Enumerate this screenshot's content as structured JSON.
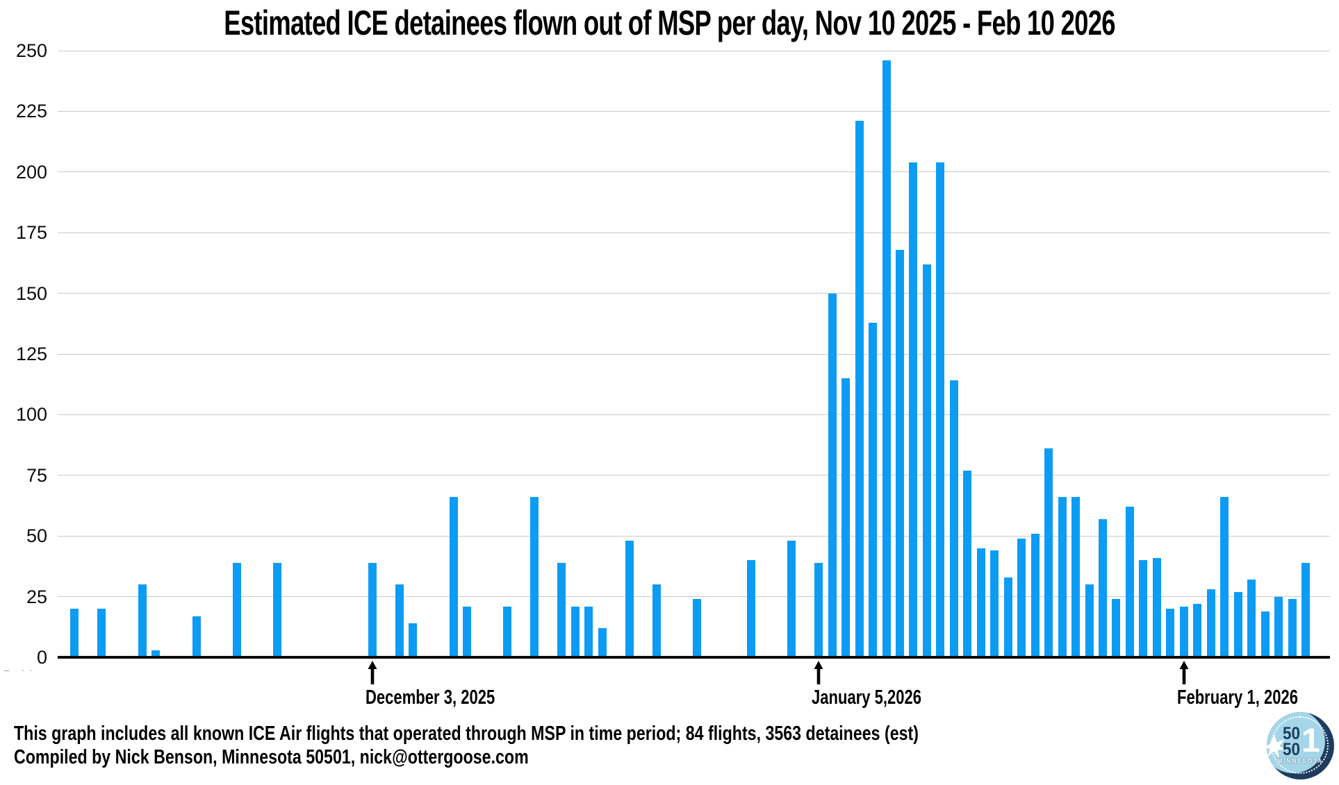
{
  "title": "Estimated ICE detainees flown out of MSP per day, Nov 10 2025 - Feb 10 2026",
  "footer": {
    "line1": "This graph includes all known ICE Air flights that operated through MSP in time period; 84 flights, 3563 detainees (est)",
    "line2": "Compiled by Nick Benson, Minnesota 50501, nick@ottergoose.com"
  },
  "axis_artifact": "– ··",
  "colors": {
    "bar": "#0d9cf4",
    "gridline": "#c9c9c9",
    "axis": "#0a0a0a",
    "text": "#000000",
    "logo_navy": "#1d3c5f",
    "logo_light_blue": "#a5d5e8"
  },
  "logo": {
    "top_number": "50",
    "bottom_number": "50",
    "big_one": "1",
    "state": "MINNESOTA"
  },
  "annotations": [
    {
      "label": "December 3, 2025",
      "day": 23
    },
    {
      "label": "January 5,2026",
      "day": 56
    },
    {
      "label": "February 1, 2026",
      "day": 83
    }
  ],
  "chart_data": {
    "type": "bar",
    "title": "Estimated ICE detainees flown out of MSP per day, Nov 10 2025 - Feb 10 2026",
    "xlabel": "",
    "ylabel": "",
    "x_range": {
      "start": "Nov 10 2025",
      "end": "Feb 10 2026",
      "total_days": 93
    },
    "ylim": [
      0,
      250
    ],
    "y_ticks": [
      0,
      25,
      50,
      75,
      100,
      125,
      150,
      175,
      200,
      225,
      250
    ],
    "grid": true,
    "legend": false,
    "total_detainees_est": 3563,
    "total_flights": 84,
    "bars": [
      {
        "day": 1,
        "date": "Nov 11",
        "value": 20
      },
      {
        "day": 3,
        "date": "Nov 13",
        "value": 20
      },
      {
        "day": 6,
        "date": "Nov 16",
        "value": 30
      },
      {
        "day": 7,
        "date": "Nov 17",
        "value": 3
      },
      {
        "day": 10,
        "date": "Nov 20",
        "value": 17
      },
      {
        "day": 13,
        "date": "Nov 23",
        "value": 39
      },
      {
        "day": 16,
        "date": "Nov 26",
        "value": 39
      },
      {
        "day": 23,
        "date": "Dec 3",
        "value": 39
      },
      {
        "day": 25,
        "date": "Dec 5",
        "value": 30
      },
      {
        "day": 26,
        "date": "Dec 6",
        "value": 14
      },
      {
        "day": 29,
        "date": "Dec 9",
        "value": 66
      },
      {
        "day": 30,
        "date": "Dec 10",
        "value": 21
      },
      {
        "day": 33,
        "date": "Dec 13",
        "value": 21
      },
      {
        "day": 35,
        "date": "Dec 15",
        "value": 66
      },
      {
        "day": 37,
        "date": "Dec 17",
        "value": 39
      },
      {
        "day": 38,
        "date": "Dec 18",
        "value": 21
      },
      {
        "day": 39,
        "date": "Dec 19",
        "value": 21
      },
      {
        "day": 40,
        "date": "Dec 20",
        "value": 12
      },
      {
        "day": 42,
        "date": "Dec 22",
        "value": 48
      },
      {
        "day": 44,
        "date": "Dec 24",
        "value": 30
      },
      {
        "day": 47,
        "date": "Dec 27",
        "value": 24
      },
      {
        "day": 51,
        "date": "Dec 31",
        "value": 40
      },
      {
        "day": 54,
        "date": "Jan 3",
        "value": 48
      },
      {
        "day": 56,
        "date": "Jan 5",
        "value": 39
      },
      {
        "day": 57,
        "date": "Jan 6",
        "value": 150
      },
      {
        "day": 58,
        "date": "Jan 7",
        "value": 115
      },
      {
        "day": 59,
        "date": "Jan 8",
        "value": 221
      },
      {
        "day": 60,
        "date": "Jan 9",
        "value": 138
      },
      {
        "day": 61,
        "date": "Jan 10",
        "value": 246
      },
      {
        "day": 62,
        "date": "Jan 11",
        "value": 168
      },
      {
        "day": 63,
        "date": "Jan 12",
        "value": 204
      },
      {
        "day": 64,
        "date": "Jan 13",
        "value": 162
      },
      {
        "day": 65,
        "date": "Jan 14",
        "value": 204
      },
      {
        "day": 66,
        "date": "Jan 15",
        "value": 114
      },
      {
        "day": 67,
        "date": "Jan 16",
        "value": 77
      },
      {
        "day": 68,
        "date": "Jan 17",
        "value": 45
      },
      {
        "day": 69,
        "date": "Jan 18",
        "value": 44
      },
      {
        "day": 70,
        "date": "Jan 19",
        "value": 33
      },
      {
        "day": 71,
        "date": "Jan 20",
        "value": 49
      },
      {
        "day": 72,
        "date": "Jan 21",
        "value": 51
      },
      {
        "day": 73,
        "date": "Jan 22",
        "value": 86
      },
      {
        "day": 74,
        "date": "Jan 23",
        "value": 66
      },
      {
        "day": 75,
        "date": "Jan 24",
        "value": 66
      },
      {
        "day": 76,
        "date": "Jan 25",
        "value": 30
      },
      {
        "day": 77,
        "date": "Jan 26",
        "value": 57
      },
      {
        "day": 78,
        "date": "Jan 27",
        "value": 24
      },
      {
        "day": 79,
        "date": "Jan 28",
        "value": 62
      },
      {
        "day": 80,
        "date": "Jan 29",
        "value": 40
      },
      {
        "day": 81,
        "date": "Jan 30",
        "value": 41
      },
      {
        "day": 82,
        "date": "Jan 31",
        "value": 20
      },
      {
        "day": 83,
        "date": "Feb 1",
        "value": 21
      },
      {
        "day": 84,
        "date": "Feb 2",
        "value": 22
      },
      {
        "day": 85,
        "date": "Feb 3",
        "value": 28
      },
      {
        "day": 86,
        "date": "Feb 4",
        "value": 66
      },
      {
        "day": 87,
        "date": "Feb 5",
        "value": 27
      },
      {
        "day": 88,
        "date": "Feb 6",
        "value": 32
      },
      {
        "day": 89,
        "date": "Feb 7",
        "value": 19
      },
      {
        "day": 90,
        "date": "Feb 8",
        "value": 25
      },
      {
        "day": 91,
        "date": "Feb 9",
        "value": 24
      },
      {
        "day": 92,
        "date": "Feb 10",
        "value": 39
      }
    ]
  }
}
